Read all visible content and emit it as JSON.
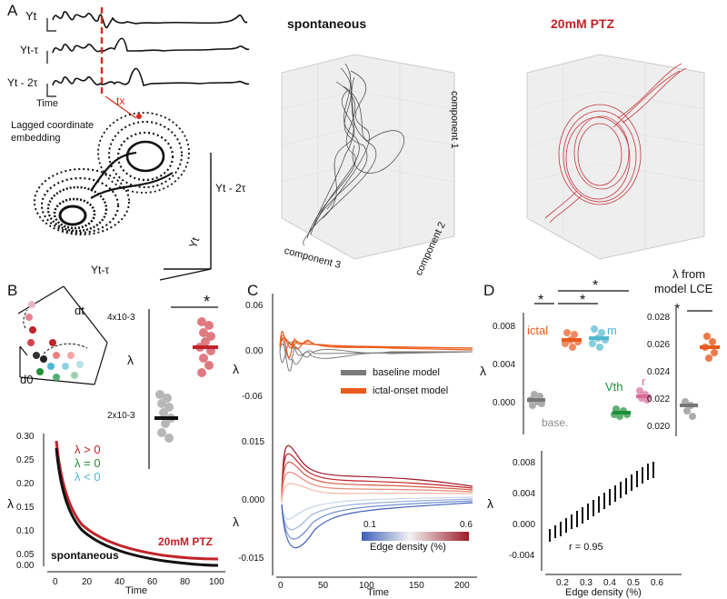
{
  "panel_letters": {
    "a": "A",
    "b": "B",
    "c": "C",
    "d": "D"
  },
  "panelA": {
    "trace_labels": [
      "Yt",
      "Yt-τ",
      "Yt - 2τ"
    ],
    "time_label": "Time",
    "tx_label": "tx",
    "embedding_label_1": "Lagged coordinate",
    "embedding_label_2": "embedding",
    "axis_labels": [
      "Yt - 2τ",
      "Yt",
      "Yt-τ"
    ],
    "spontaneous_title": "spontaneous",
    "ptz_title": "20mM PTZ",
    "component_labels": [
      "component 1",
      "component 2",
      "component 3"
    ],
    "colors": {
      "black": "#111111",
      "red": "#c0232a",
      "dashed": "#d62d20"
    }
  },
  "panelB": {
    "d_t_label": "dt",
    "d_0_label": "d0",
    "lambda_label": "λ",
    "ytick_top": "4x10-3",
    "ytick_bottom": "2x10-3",
    "star": "*",
    "legend": [
      "λ > 0",
      "λ = 0",
      "λ < 0"
    ],
    "legend_colors": [
      "#c0232a",
      "#1f8f3a",
      "#4fb7d0"
    ],
    "curve_ptz_label": "20mM PTZ",
    "curve_spont_label": "spontaneous",
    "time_label": "Time"
  },
  "panelC": {
    "lambda_label": "λ",
    "top_yticks": [
      "0.06",
      "0.00",
      "-0.06"
    ],
    "bottom_yticks": [
      "0.015",
      "0.000",
      "-0.015"
    ],
    "xticks": [
      "0",
      "50",
      "100",
      "150",
      "200"
    ],
    "legend": [
      "baseline model",
      "ictal-onset model"
    ],
    "legend_colors": [
      "#7a7a7a",
      "#ea5a1c"
    ],
    "colorbar_min": "0.1",
    "colorbar_max": "0.6",
    "colorbar_label": "Edge density (%)",
    "time_label": "Time"
  },
  "panelD": {
    "lambda_label": "λ",
    "top_yticks": [
      "0.008",
      "0.004",
      "0.000"
    ],
    "groups": [
      "ictal",
      "m",
      "Vth",
      "r",
      "base."
    ],
    "group_colors": [
      "#ea5a1c",
      "#4fb7d0",
      "#1f8f3a",
      "#d96a9a",
      "#8a8a8a"
    ],
    "stars": [
      "*",
      "*",
      "*"
    ],
    "lce_title_1": "λ from",
    "lce_title_2": "model LCE",
    "lce_yticks": [
      "0.028",
      "0.026",
      "0.024",
      "0.022",
      "0.020"
    ],
    "bottom_yticks": [
      "0.008",
      "0.004",
      "0.000",
      "-0.004"
    ],
    "bottom_xticks": [
      "0.2",
      "0.3",
      "0.4",
      "0.5",
      "0.6"
    ],
    "r_label": "r = 0.95",
    "xlabel": "Edge density (%)"
  }
}
